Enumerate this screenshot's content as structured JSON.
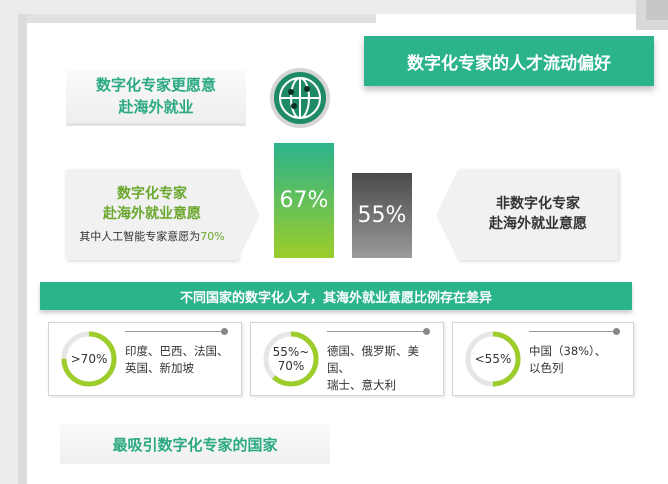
{
  "title": "数字化专家的人才流动偏好",
  "subtitle_lines": [
    "数字化专家更愿意",
    "赴海外就业"
  ],
  "left_box": {
    "line1": "数字化专家",
    "line2": "赴海外就业意愿",
    "note_prefix": "其中人工智能专家意愿为",
    "note_value": "70%"
  },
  "right_box": {
    "line1": "非数字化专家",
    "line2": "赴海外就业意愿"
  },
  "bars": [
    {
      "label": "67%",
      "value": 67,
      "color": "#2bb38c"
    },
    {
      "label": "55%",
      "value": 55,
      "color": "#6a6a6a"
    }
  ],
  "banner": "不同国家的数字化人才，其海外就业意愿比例存在差异",
  "country_groups": [
    {
      "ring_label": ">70%",
      "fill": 0.75,
      "countries_line1": "印度、巴西、法国、",
      "countries_line2": "英国、新加坡"
    },
    {
      "ring_label_line1": "55%~",
      "ring_label_line2": "70%",
      "fill": 0.62,
      "countries_line1": "德国、俄罗斯、美国、",
      "countries_line2": "瑞士、意大利"
    },
    {
      "ring_label": "<55%",
      "fill": 0.5,
      "countries_line1": "中国（38%）、",
      "countries_line2": "以色列"
    }
  ],
  "bottom_title": "最吸引数字化专家的国家",
  "colors": {
    "accent": "#2bb38c",
    "lime": "#9ccd2a",
    "gray": "#6a6a6a"
  },
  "icons": [
    "globe-icon"
  ]
}
